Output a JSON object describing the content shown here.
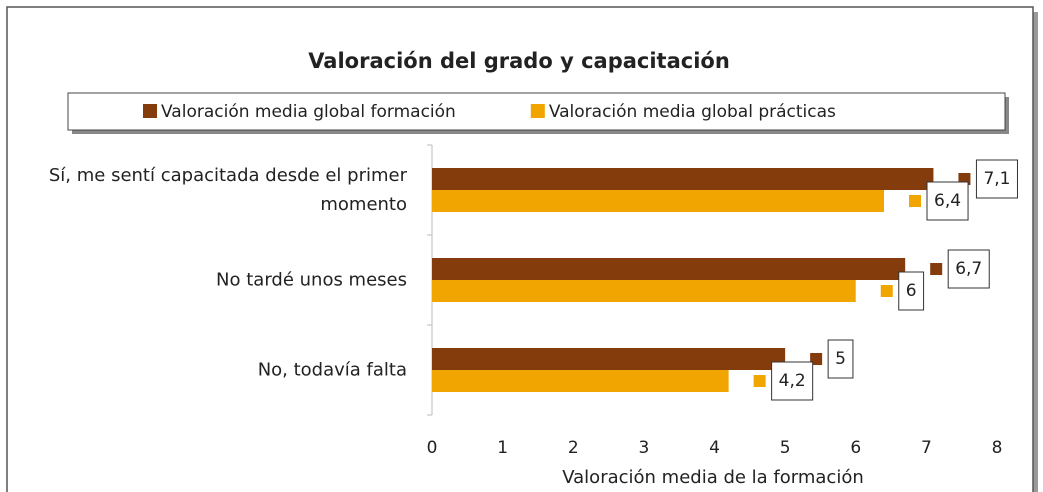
{
  "chart_data": {
    "type": "bar",
    "orientation": "horizontal",
    "title": "Valoración del grado y capacitación",
    "x_label": "Valoración media de la formación",
    "categories": [
      "Sí, me sentí capacitada desde el primer momento",
      "No tardé unos meses",
      "No, todavía falta"
    ],
    "series": [
      {
        "name": "Valoración media global formación",
        "color": "#843c0c",
        "values": [
          7.1,
          6.7,
          5
        ],
        "value_labels": [
          "7,1",
          "6,7",
          "5"
        ]
      },
      {
        "name": "Valoración media global prácticas",
        "color": "#f0a500",
        "values": [
          6.4,
          6,
          4.2
        ],
        "value_labels": [
          "6,4",
          "6",
          "4,2"
        ]
      }
    ],
    "xlim": [
      0,
      8
    ],
    "xticks": [
      0,
      1,
      2,
      3,
      4,
      5,
      6,
      7,
      8
    ],
    "grid": false
  }
}
